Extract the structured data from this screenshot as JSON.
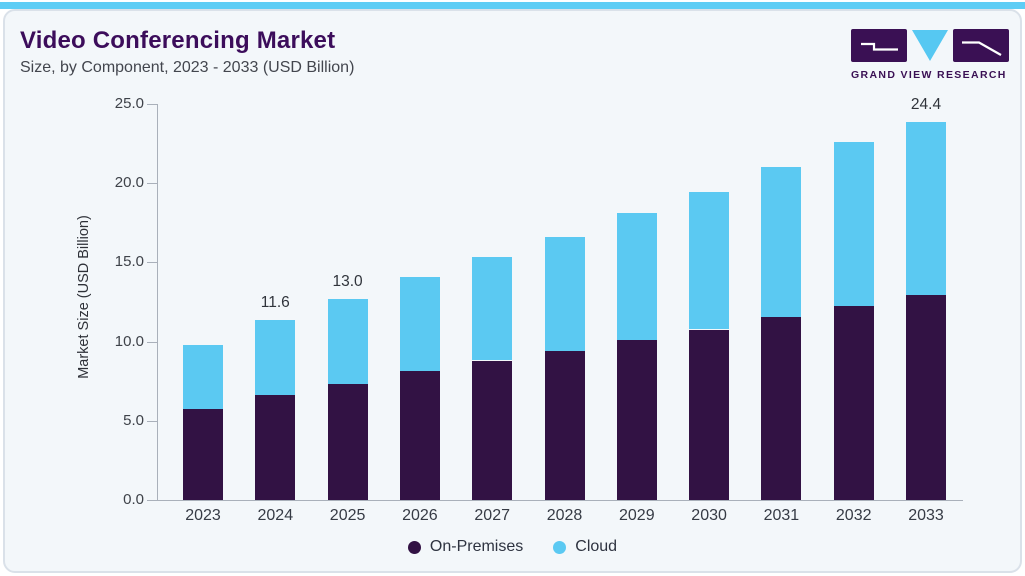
{
  "page": {
    "title": "Video Conferencing Market",
    "subtitle": "Size, by Component, 2023 - 2033 (USD Billion)"
  },
  "logo": {
    "name": "Grand View Research",
    "text": "GRAND VIEW RESEARCH"
  },
  "colors": {
    "accent_strip": "#5ECDF5",
    "card_bg": "#F3F7FA",
    "card_border": "#DAE1E9",
    "title_text": "#3C0D5B",
    "on_premises": "#321244",
    "cloud": "#5BC9F2",
    "axis": "#A9B0BA"
  },
  "chart_data": {
    "type": "bar",
    "stacked": true,
    "title": "Video Conferencing Market Size, by Component, 2023 - 2033 (USD Billion)",
    "categories": [
      "2023",
      "2024",
      "2025",
      "2026",
      "2027",
      "2028",
      "2029",
      "2030",
      "2031",
      "2032",
      "2033"
    ],
    "series": [
      {
        "name": "On-Premises",
        "color": "#321244",
        "values": [
          5.9,
          6.8,
          7.5,
          8.3,
          9.0,
          9.6,
          10.3,
          11.0,
          11.8,
          12.5,
          13.2
        ]
      },
      {
        "name": "Cloud",
        "color": "#5BC9F2",
        "values": [
          4.1,
          4.8,
          5.5,
          6.1,
          6.7,
          7.4,
          8.2,
          8.9,
          9.7,
          10.6,
          11.2
        ]
      }
    ],
    "totals": [
      10.0,
      11.6,
      13.0,
      14.4,
      15.7,
      17.0,
      18.5,
      19.9,
      21.5,
      23.1,
      24.4
    ],
    "bar_labels": {
      "2024": "11.6",
      "2025": "13.0",
      "2033": "24.4"
    },
    "ylabel": "Market Size (USD Billion)",
    "xlabel": "",
    "yticks": [
      "0.0",
      "5.0",
      "10.0",
      "15.0",
      "20.0",
      "25.0"
    ],
    "ylim": [
      0,
      25
    ],
    "grid": false,
    "legend_position": "bottom"
  }
}
